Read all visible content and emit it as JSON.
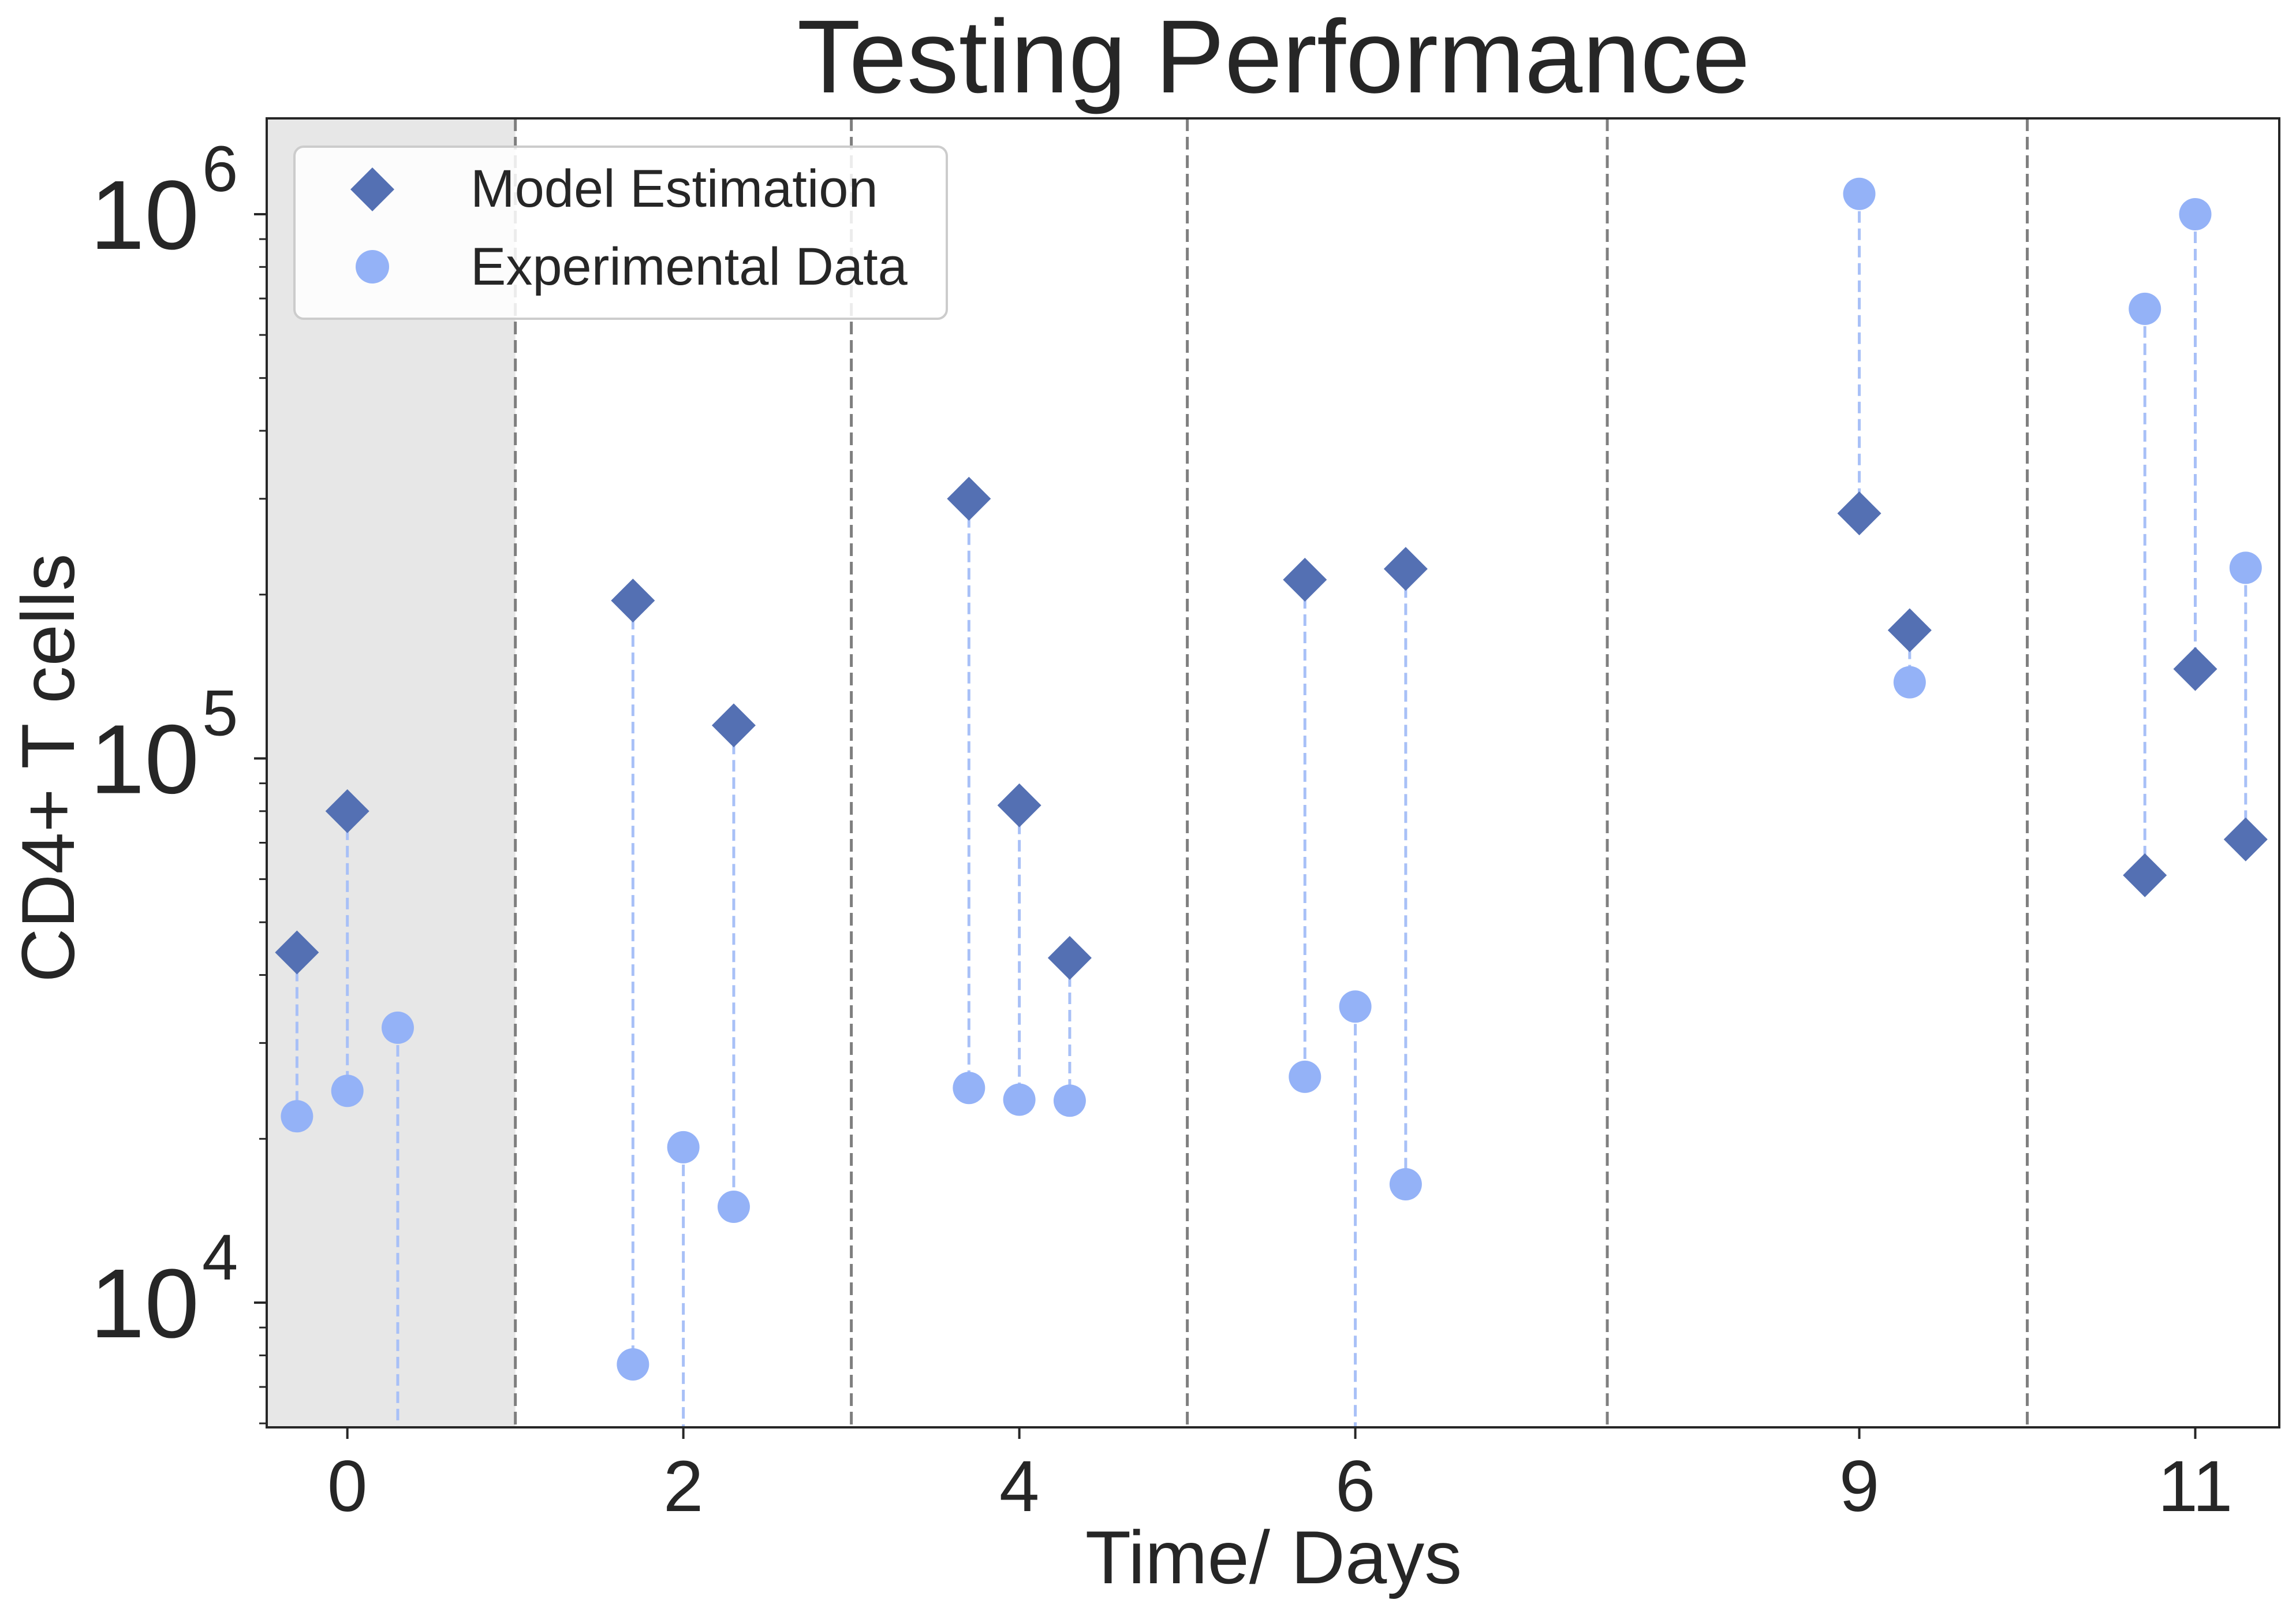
{
  "chart_data": {
    "type": "scatter",
    "title": "Testing Performance",
    "xlabel": "Time/ Days",
    "ylabel": "CD4+ T cells",
    "y_scale": "log",
    "ylim": [
      5900,
      1500000
    ],
    "xlim": [
      -0.48,
      11.5
    ],
    "x_ticks": [
      {
        "value": 0,
        "label": "0"
      },
      {
        "value": 2,
        "label": "2"
      },
      {
        "value": 4,
        "label": "4"
      },
      {
        "value": 6,
        "label": "6"
      },
      {
        "value": 9,
        "label": "9"
      },
      {
        "value": 11,
        "label": "11"
      }
    ],
    "y_ticks": [
      {
        "value": 10000,
        "base": "10",
        "exp": "4"
      },
      {
        "value": 100000,
        "base": "10",
        "exp": "5"
      },
      {
        "value": 1000000,
        "base": "10",
        "exp": "6"
      }
    ],
    "day_separators": [
      1,
      3,
      5,
      7.5,
      10
    ],
    "shaded_region": [
      -0.48,
      1
    ],
    "legend": {
      "placement": "top-left"
    },
    "colors": {
      "model": "#5470b3",
      "experimental": "#94b2f7",
      "connector": "#a8c0f7",
      "separator": "#7f7f7f",
      "shade": "#e7e7e7",
      "text": "#262626"
    },
    "series": [
      {
        "name": "Model Estimation",
        "marker": "diamond",
        "points": [
          {
            "x": -0.3,
            "y": 44000
          },
          {
            "x": 0,
            "y": 80000
          },
          {
            "x": 1.7,
            "y": 195000
          },
          {
            "x": 2.3,
            "y": 115000
          },
          {
            "x": 3.7,
            "y": 300000
          },
          {
            "x": 4,
            "y": 82000
          },
          {
            "x": 4.3,
            "y": 43000
          },
          {
            "x": 5.7,
            "y": 213000
          },
          {
            "x": 6.3,
            "y": 223000
          },
          {
            "x": 9,
            "y": 282000
          },
          {
            "x": 9.3,
            "y": 172000
          },
          {
            "x": 10.7,
            "y": 61000
          },
          {
            "x": 11,
            "y": 146000
          },
          {
            "x": 11.3,
            "y": 71000
          }
        ]
      },
      {
        "name": "Experimental Data",
        "marker": "circle",
        "points": [
          {
            "x": -0.3,
            "y": 22000
          },
          {
            "x": 0,
            "y": 24500
          },
          {
            "x": 0.3,
            "y": 32000
          },
          {
            "x": 1.7,
            "y": 7700
          },
          {
            "x": 2,
            "y": 19300
          },
          {
            "x": 2.3,
            "y": 15000
          },
          {
            "x": 3.7,
            "y": 24800
          },
          {
            "x": 4,
            "y": 23600
          },
          {
            "x": 4.3,
            "y": 23500
          },
          {
            "x": 5.7,
            "y": 26000
          },
          {
            "x": 6,
            "y": 35000
          },
          {
            "x": 6.3,
            "y": 16500
          },
          {
            "x": 9,
            "y": 1090000
          },
          {
            "x": 9.3,
            "y": 138000
          },
          {
            "x": 10.7,
            "y": 670000
          },
          {
            "x": 11,
            "y": 1000000
          },
          {
            "x": 11.3,
            "y": 224000
          }
        ]
      }
    ],
    "connectors": [
      {
        "x": -0.3,
        "from": 44000,
        "to": 22000
      },
      {
        "x": 0,
        "from": 80000,
        "to": 24500
      },
      {
        "x": 0.3,
        "from": 32000,
        "to": 5900
      },
      {
        "x": 1.7,
        "from": 195000,
        "to": 7700
      },
      {
        "x": 2,
        "from": 19300,
        "to": 5900
      },
      {
        "x": 2.3,
        "from": 115000,
        "to": 15000
      },
      {
        "x": 3.7,
        "from": 300000,
        "to": 24800
      },
      {
        "x": 4,
        "from": 82000,
        "to": 23600
      },
      {
        "x": 4.3,
        "from": 43000,
        "to": 23500
      },
      {
        "x": 5.7,
        "from": 213000,
        "to": 26000
      },
      {
        "x": 6,
        "from": 35000,
        "to": 5900
      },
      {
        "x": 6.3,
        "from": 223000,
        "to": 16500
      },
      {
        "x": 9,
        "from": 1090000,
        "to": 282000
      },
      {
        "x": 9.3,
        "from": 172000,
        "to": 138000
      },
      {
        "x": 10.7,
        "from": 670000,
        "to": 61000
      },
      {
        "x": 11,
        "from": 1000000,
        "to": 146000
      },
      {
        "x": 11.3,
        "from": 224000,
        "to": 71000
      }
    ]
  }
}
